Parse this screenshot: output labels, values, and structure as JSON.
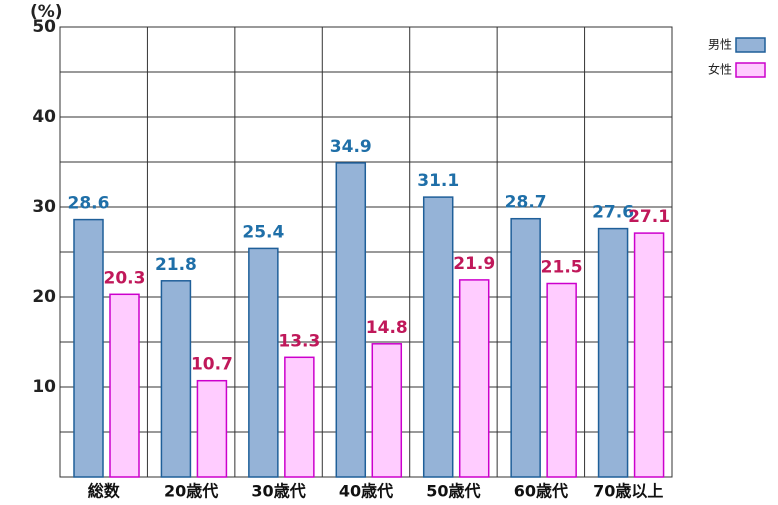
{
  "chart_data": {
    "type": "bar",
    "y_label": "(%)",
    "categories": [
      "総数",
      "20歳代",
      "30歳代",
      "40歳代",
      "50歳代",
      "60歳代",
      "70歳以上"
    ],
    "series": [
      {
        "name": "男性",
        "color": "#95b3d7",
        "stroke": "#1f5f99",
        "label_color": "#1f6fa8",
        "values": [
          28.6,
          21.8,
          25.4,
          34.9,
          31.1,
          28.7,
          27.6
        ]
      },
      {
        "name": "女性",
        "color": "#ffccff",
        "stroke": "#cc00cc",
        "label_color": "#c0185a",
        "values": [
          20.3,
          10.7,
          13.3,
          14.8,
          21.9,
          21.5,
          27.1
        ]
      }
    ],
    "ylim": [
      0,
      50
    ],
    "yticks": [
      10,
      20,
      30,
      40,
      50
    ],
    "minor_yticks": [
      5,
      15,
      25,
      35,
      45
    ],
    "grid": true,
    "legend": "top-right"
  }
}
